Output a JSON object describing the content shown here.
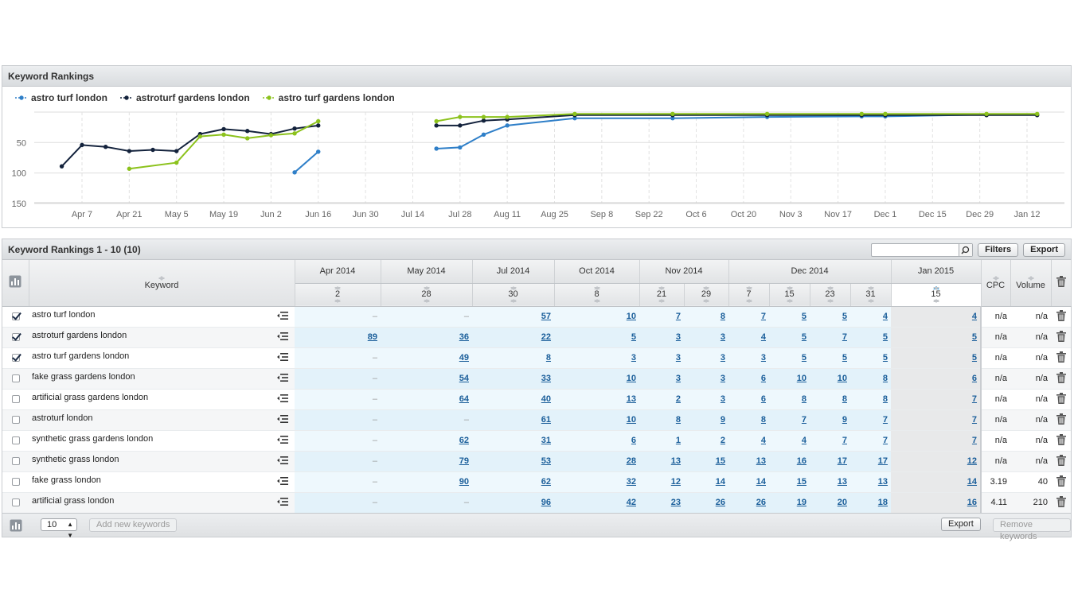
{
  "chart_panel": {
    "title": "Keyword Rankings"
  },
  "chart_data": {
    "type": "line",
    "x_ticks": [
      "Apr 7",
      "Apr 21",
      "May 5",
      "May 19",
      "Jun 2",
      "Jun 16",
      "Jun 30",
      "Jul 14",
      "Jul 28",
      "Aug 11",
      "Aug 25",
      "Sep 8",
      "Sep 22",
      "Oct 6",
      "Oct 20",
      "Nov 3",
      "Nov 17",
      "Dec 1",
      "Dec 15",
      "Dec 29",
      "Jan 12"
    ],
    "y_ticks": [
      "50",
      "100",
      "150"
    ],
    "y_inverted": true,
    "legend_placement": "top-left",
    "series": [
      {
        "name": "astro turf london",
        "color": "#2f7fc8",
        "points": [
          [
            "Jun 9",
            99
          ],
          [
            "Jun 16",
            65
          ],
          [
            "Jul 21",
            60
          ],
          [
            "Jul 28",
            58
          ],
          [
            "Aug 4",
            37
          ],
          [
            "Aug 11",
            22
          ],
          [
            "Aug 31",
            10
          ],
          [
            "Sep 29",
            10
          ],
          [
            "Oct 27",
            8
          ],
          [
            "Nov 24",
            7
          ],
          [
            "Dec 1",
            7
          ],
          [
            "Dec 31",
            4
          ],
          [
            "Jan 15",
            4
          ]
        ]
      },
      {
        "name": "astroturf gardens london",
        "color": "#13223c",
        "points": [
          [
            "Apr 1",
            89
          ],
          [
            "Apr 7",
            54
          ],
          [
            "Apr 14",
            57
          ],
          [
            "Apr 21",
            64
          ],
          [
            "Apr 28",
            62
          ],
          [
            "May 5",
            64
          ],
          [
            "May 12",
            36
          ],
          [
            "May 19",
            28
          ],
          [
            "May 26",
            31
          ],
          [
            "Jun 2",
            36
          ],
          [
            "Jun 9",
            27
          ],
          [
            "Jun 16",
            22
          ],
          [
            "Jul 21",
            22
          ],
          [
            "Jul 28",
            22
          ],
          [
            "Aug 4",
            14
          ],
          [
            "Aug 11",
            12
          ],
          [
            "Aug 31",
            5
          ],
          [
            "Sep 29",
            5
          ],
          [
            "Oct 27",
            5
          ],
          [
            "Nov 24",
            5
          ],
          [
            "Dec 1",
            5
          ],
          [
            "Dec 31",
            5
          ],
          [
            "Jan 15",
            5
          ]
        ]
      },
      {
        "name": "astro turf gardens london",
        "color": "#8cc21c",
        "points": [
          [
            "Apr 21",
            93
          ],
          [
            "May 5",
            83
          ],
          [
            "May 12",
            40
          ],
          [
            "May 19",
            37
          ],
          [
            "May 26",
            43
          ],
          [
            "Jun 2",
            38
          ],
          [
            "Jun 9",
            35
          ],
          [
            "Jun 16",
            15
          ],
          [
            "Jul 21",
            15
          ],
          [
            "Jul 28",
            8
          ],
          [
            "Aug 4",
            8
          ],
          [
            "Aug 11",
            8
          ],
          [
            "Aug 31",
            3
          ],
          [
            "Sep 29",
            3
          ],
          [
            "Oct 27",
            3
          ],
          [
            "Nov 24",
            3
          ],
          [
            "Dec 1",
            3
          ],
          [
            "Dec 31",
            3
          ],
          [
            "Jan 15",
            3
          ]
        ]
      }
    ]
  },
  "table_panel": {
    "title": "Keyword Rankings 1 - 10 (10)",
    "search_value": "",
    "filters_label": "Filters",
    "export_label": "Export",
    "keyword_header": "Keyword",
    "cpc_header": "CPC",
    "volume_header": "Volume",
    "months": [
      {
        "label": "Apr 2014",
        "span": 1
      },
      {
        "label": "May 2014",
        "span": 1
      },
      {
        "label": "Jul 2014",
        "span": 1
      },
      {
        "label": "Oct 2014",
        "span": 1
      },
      {
        "label": "Nov 2014",
        "span": 2
      },
      {
        "label": "Dec 2014",
        "span": 4
      },
      {
        "label": "Jan 2015",
        "span": 1
      }
    ],
    "days": [
      "2",
      "28",
      "30",
      "8",
      "21",
      "29",
      "7",
      "15",
      "23",
      "31",
      "15"
    ],
    "selected_day_index": 10,
    "rows": [
      {
        "checked": true,
        "keyword": "astro turf london",
        "values": [
          "–",
          "–",
          "57",
          "10",
          "7",
          "8",
          "7",
          "5",
          "5",
          "4",
          "4"
        ],
        "cpc": "n/a",
        "volume": "n/a"
      },
      {
        "checked": true,
        "keyword": "astroturf gardens london",
        "values": [
          "89",
          "36",
          "22",
          "5",
          "3",
          "3",
          "4",
          "5",
          "7",
          "5",
          "5"
        ],
        "cpc": "n/a",
        "volume": "n/a"
      },
      {
        "checked": true,
        "keyword": "astro turf gardens london",
        "values": [
          "–",
          "49",
          "8",
          "3",
          "3",
          "3",
          "3",
          "5",
          "5",
          "5",
          "5"
        ],
        "cpc": "n/a",
        "volume": "n/a"
      },
      {
        "checked": false,
        "keyword": "fake grass gardens london",
        "values": [
          "–",
          "54",
          "33",
          "10",
          "3",
          "3",
          "6",
          "10",
          "10",
          "8",
          "6"
        ],
        "cpc": "n/a",
        "volume": "n/a"
      },
      {
        "checked": false,
        "keyword": "artificial grass gardens london",
        "values": [
          "–",
          "64",
          "40",
          "13",
          "2",
          "3",
          "6",
          "8",
          "8",
          "8",
          "7"
        ],
        "cpc": "n/a",
        "volume": "n/a"
      },
      {
        "checked": false,
        "keyword": "astroturf london",
        "values": [
          "–",
          "–",
          "61",
          "10",
          "8",
          "9",
          "8",
          "7",
          "9",
          "7",
          "7"
        ],
        "cpc": "n/a",
        "volume": "n/a"
      },
      {
        "checked": false,
        "keyword": "synthetic grass gardens london",
        "values": [
          "–",
          "62",
          "31",
          "6",
          "1",
          "2",
          "4",
          "4",
          "7",
          "7",
          "7"
        ],
        "cpc": "n/a",
        "volume": "n/a"
      },
      {
        "checked": false,
        "keyword": "synthetic grass london",
        "values": [
          "–",
          "79",
          "53",
          "28",
          "13",
          "15",
          "13",
          "16",
          "17",
          "17",
          "12"
        ],
        "cpc": "n/a",
        "volume": "n/a"
      },
      {
        "checked": false,
        "keyword": "fake grass london",
        "values": [
          "–",
          "90",
          "62",
          "32",
          "12",
          "14",
          "14",
          "15",
          "13",
          "13",
          "14"
        ],
        "cpc": "3.19",
        "volume": "40"
      },
      {
        "checked": false,
        "keyword": "artificial grass london",
        "values": [
          "–",
          "–",
          "96",
          "42",
          "23",
          "26",
          "26",
          "19",
          "20",
          "18",
          "16"
        ],
        "cpc": "4.11",
        "volume": "210"
      }
    ],
    "footer": {
      "per_page_value": "10",
      "add_label": "Add new keywords",
      "export_label": "Export",
      "remove_label": "Remove keywords"
    }
  }
}
